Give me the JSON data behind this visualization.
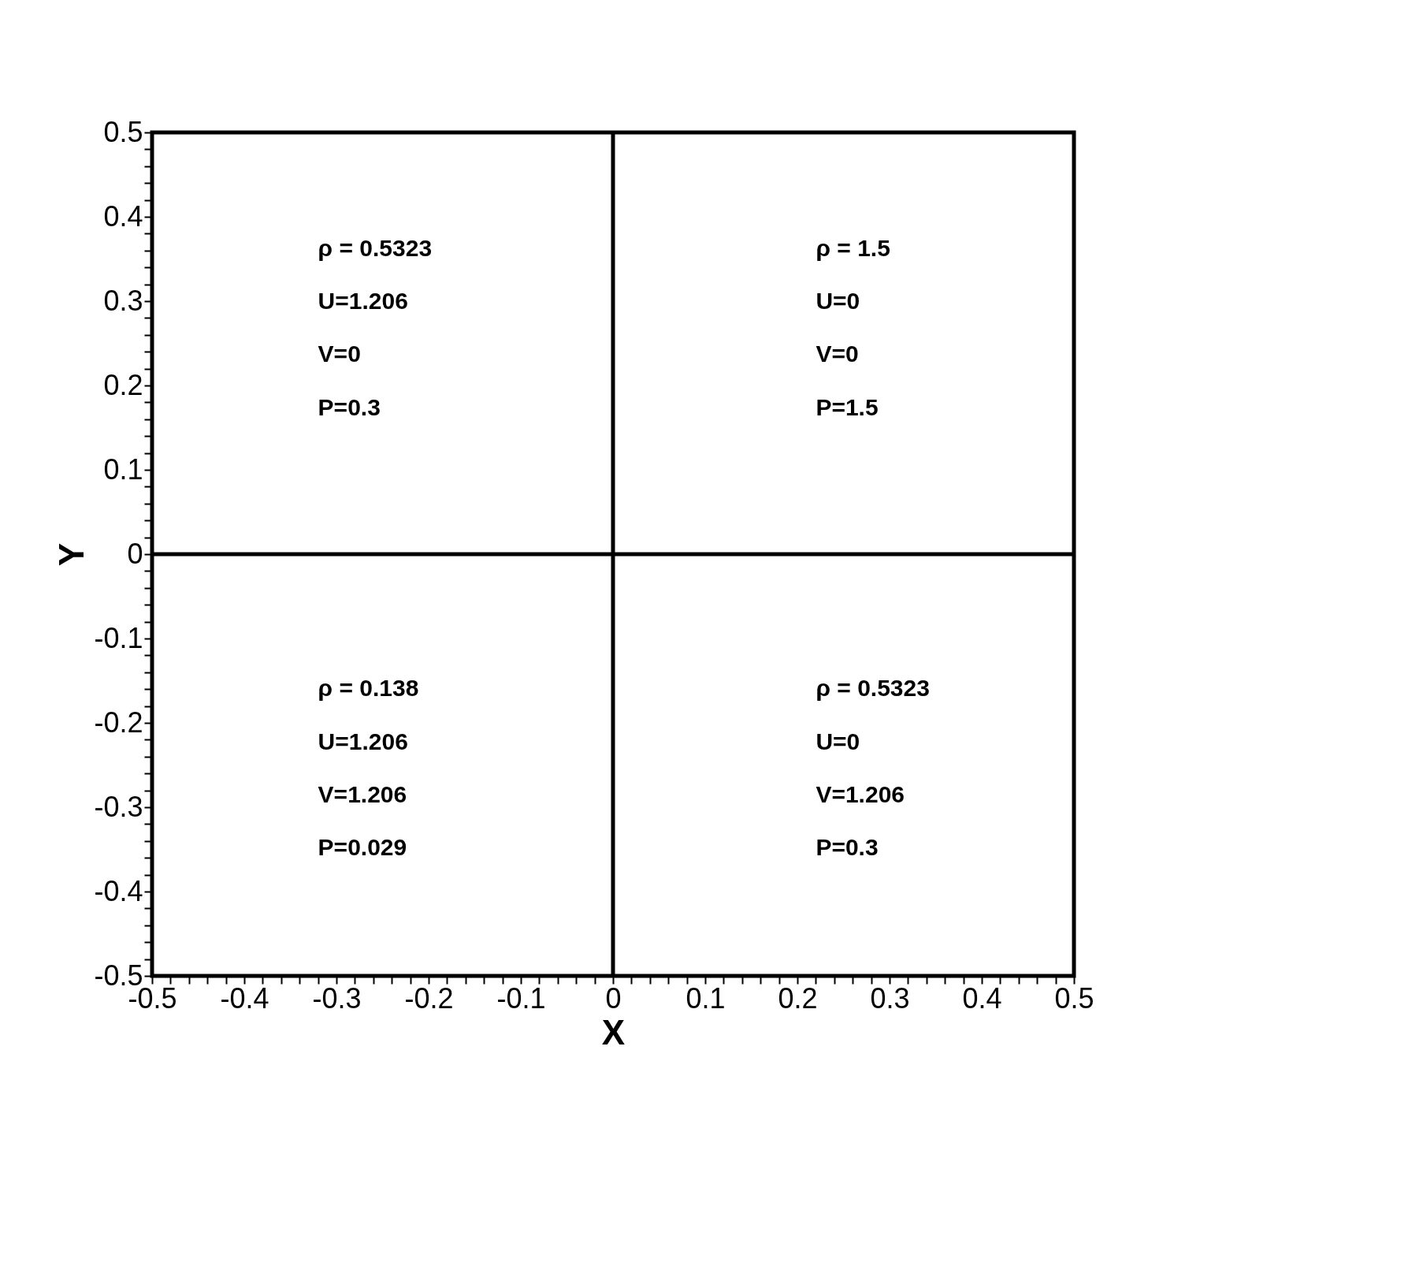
{
  "chart_data": {
    "type": "line",
    "xlabel": "X",
    "ylabel": "Y",
    "xlim": [
      -0.5,
      0.5
    ],
    "ylim": [
      -0.5,
      0.5
    ],
    "xticks": [
      -0.5,
      {
        "value": -0.48,
        "label": null
      },
      {
        "value": -0.46,
        "label": null
      },
      {
        "value": -0.44,
        "label": null
      },
      {
        "value": -0.42,
        "label": null
      },
      -0.4,
      {
        "value": -0.38,
        "label": null
      },
      {
        "value": -0.36,
        "label": null
      },
      {
        "value": -0.34,
        "label": null
      },
      {
        "value": -0.32,
        "label": null
      },
      -0.3,
      {
        "value": -0.28,
        "label": null
      },
      {
        "value": -0.26,
        "label": null
      },
      {
        "value": -0.24,
        "label": null
      },
      {
        "value": -0.22,
        "label": null
      },
      -0.2,
      {
        "value": -0.18,
        "label": null
      },
      {
        "value": -0.16,
        "label": null
      },
      {
        "value": -0.14,
        "label": null
      },
      {
        "value": -0.12,
        "label": null
      },
      -0.1,
      {
        "value": -0.08,
        "label": null
      },
      {
        "value": -0.06,
        "label": null
      },
      {
        "value": -0.04,
        "label": null
      },
      {
        "value": -0.02,
        "label": null
      },
      0,
      {
        "value": 0.02,
        "label": null
      },
      {
        "value": 0.04,
        "label": null
      },
      {
        "value": 0.06,
        "label": null
      },
      {
        "value": 0.08,
        "label": null
      },
      0.1,
      {
        "value": 0.12,
        "label": null
      },
      {
        "value": 0.14,
        "label": null
      },
      {
        "value": 0.16,
        "label": null
      },
      {
        "value": 0.18,
        "label": null
      },
      0.2,
      {
        "value": 0.22,
        "label": null
      },
      {
        "value": 0.24,
        "label": null
      },
      {
        "value": 0.26,
        "label": null
      },
      {
        "value": 0.28,
        "label": null
      },
      0.3,
      {
        "value": 0.32,
        "label": null
      },
      {
        "value": 0.34,
        "label": null
      },
      {
        "value": 0.36,
        "label": null
      },
      {
        "value": 0.38,
        "label": null
      },
      0.4,
      {
        "value": 0.42,
        "label": null
      },
      {
        "value": 0.44,
        "label": null
      },
      {
        "value": 0.46,
        "label": null
      },
      {
        "value": 0.48,
        "label": null
      },
      0.5
    ],
    "yticks": [
      -0.5,
      {
        "value": -0.48,
        "label": null
      },
      {
        "value": -0.46,
        "label": null
      },
      {
        "value": -0.44,
        "label": null
      },
      {
        "value": -0.42,
        "label": null
      },
      -0.4,
      {
        "value": -0.38,
        "label": null
      },
      {
        "value": -0.36,
        "label": null
      },
      {
        "value": -0.34,
        "label": null
      },
      {
        "value": -0.32,
        "label": null
      },
      -0.3,
      {
        "value": -0.28,
        "label": null
      },
      {
        "value": -0.26,
        "label": null
      },
      {
        "value": -0.24,
        "label": null
      },
      {
        "value": -0.22,
        "label": null
      },
      -0.2,
      {
        "value": -0.18,
        "label": null
      },
      {
        "value": -0.16,
        "label": null
      },
      {
        "value": -0.14,
        "label": null
      },
      {
        "value": -0.12,
        "label": null
      },
      -0.1,
      {
        "value": -0.08,
        "label": null
      },
      {
        "value": -0.06,
        "label": null
      },
      {
        "value": -0.04,
        "label": null
      },
      {
        "value": -0.02,
        "label": null
      },
      0,
      {
        "value": 0.02,
        "label": null
      },
      {
        "value": 0.04,
        "label": null
      },
      {
        "value": 0.06,
        "label": null
      },
      {
        "value": 0.08,
        "label": null
      },
      0.1,
      {
        "value": 0.12,
        "label": null
      },
      {
        "value": 0.14,
        "label": null
      },
      {
        "value": 0.16,
        "label": null
      },
      {
        "value": 0.18,
        "label": null
      },
      0.2,
      {
        "value": 0.22,
        "label": null
      },
      {
        "value": 0.24,
        "label": null
      },
      {
        "value": 0.26,
        "label": null
      },
      {
        "value": 0.28,
        "label": null
      },
      0.3,
      {
        "value": 0.32,
        "label": null
      },
      {
        "value": 0.34,
        "label": null
      },
      {
        "value": 0.36,
        "label": null
      },
      {
        "value": 0.38,
        "label": null
      },
      0.4,
      {
        "value": 0.42,
        "label": null
      },
      {
        "value": 0.44,
        "label": null
      },
      {
        "value": 0.46,
        "label": null
      },
      {
        "value": 0.48,
        "label": null
      },
      0.5
    ],
    "grid": false,
    "marker": "none",
    "series": [
      {
        "x": [
          0,
          0
        ],
        "values": [
          -0.5,
          0.5
        ],
        "color": "#000000"
      },
      {
        "x": [
          -0.5,
          0.5
        ],
        "values": [
          0,
          0
        ],
        "color": "#000000"
      }
    ],
    "annotations": [
      "ρ = 0.5323",
      "U=1.206",
      "V=0",
      "P=0.3",
      "ρ = 1.5",
      "U=0",
      "V=0",
      "P=1.5",
      "ρ = 0.138",
      "U=1.206",
      "V=1.206",
      "P=0.029",
      "ρ = 0.5323",
      "U=0",
      "V=1.206",
      "P=0.3"
    ]
  }
}
